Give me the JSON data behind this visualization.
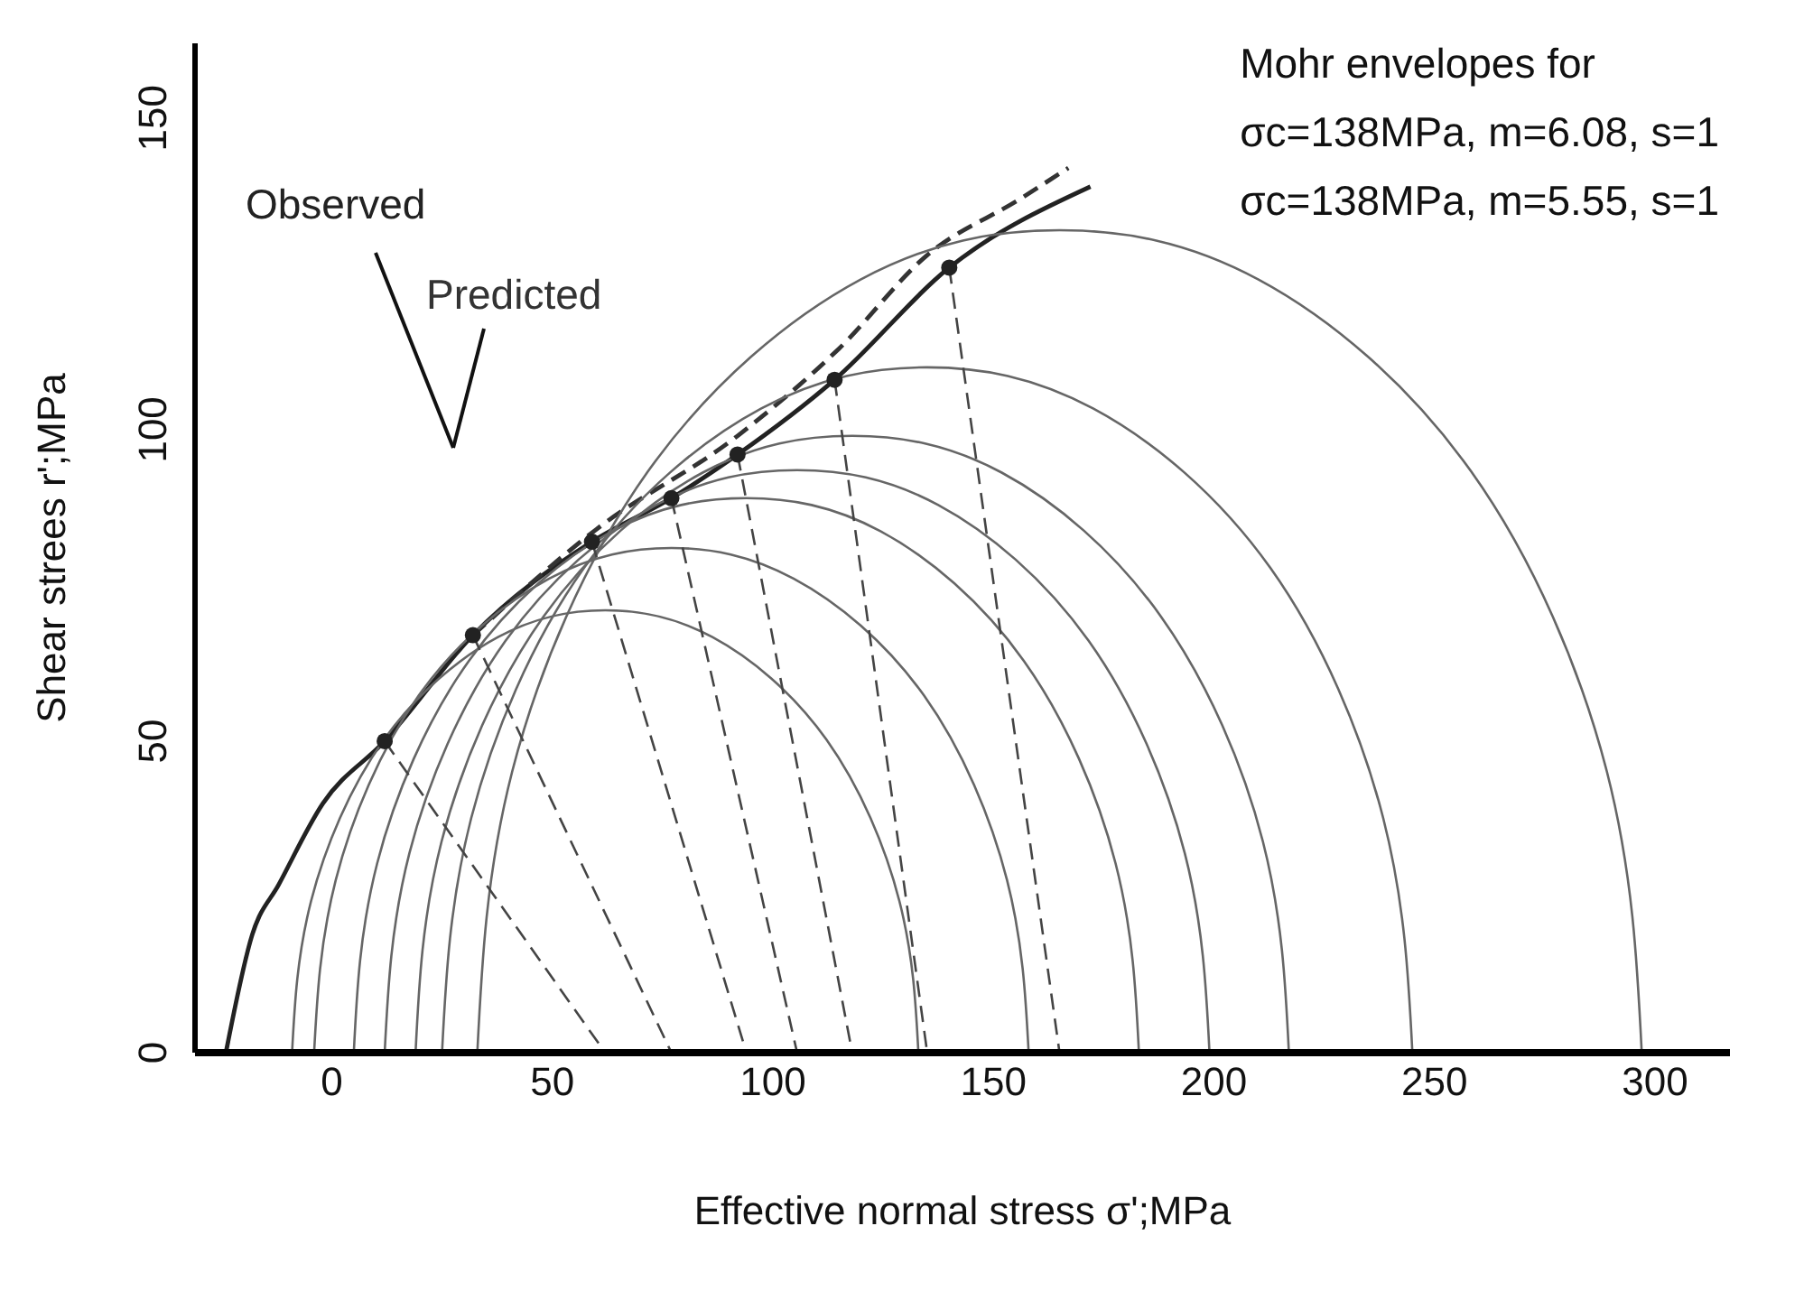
{
  "chart_data": {
    "type": "line",
    "xlabel": "Effective normal stress σ';MPa",
    "ylabel": "Shear strees r';MPa",
    "xlim": [
      -31,
      317
    ],
    "xticks": [
      0,
      50,
      100,
      150,
      200,
      250,
      300
    ],
    "ylim": [
      0,
      162
    ],
    "yticks": [
      0,
      50,
      100,
      150
    ],
    "grid": false,
    "annotations": [
      "Mohr envelopes for",
      "σc=138MPa, m=6.08, s=1",
      "σc=138MPa, m=5.55, s=1"
    ],
    "series": [
      {
        "name": "Observed",
        "color": "#222222",
        "line_style": "solid",
        "x": [
          -24,
          -18,
          -12,
          -2,
          12,
          32,
          59,
          77,
          92,
          114,
          140,
          172
        ],
        "values": [
          0,
          19,
          27,
          40,
          50,
          67,
          82,
          89,
          96,
          108,
          126,
          139
        ]
      },
      {
        "name": "Predicted",
        "color": "#333333",
        "line_style": "dashed",
        "x": [
          32,
          60,
          92,
          115,
          135,
          156,
          167
        ],
        "values": [
          67,
          84,
          99,
          113,
          128,
          137,
          142
        ]
      },
      {
        "color": "#666666",
        "line_style": "solid",
        "x": [
          -9,
          -4.7,
          11.8,
          37.7,
          62,
          86.3,
          112.2,
          128.7,
          133
        ],
        "values": [
          0,
          24.3,
          50.2,
          66.7,
          71,
          66.7,
          50.2,
          24.3,
          0
        ]
      },
      {
        "color": "#666666",
        "line_style": "solid",
        "x": [
          -4,
          0.9,
          19.7,
          49.3,
          77,
          104.7,
          134.3,
          153.1,
          158
        ],
        "values": [
          0,
          27.7,
          57.3,
          76.1,
          81,
          76.1,
          57.3,
          27.7,
          0
        ]
      },
      {
        "color": "#666666",
        "line_style": "solid",
        "x": [
          5,
          10.3,
          31.1,
          63.6,
          94,
          124.4,
          156.9,
          177.7,
          183
        ],
        "values": [
          0,
          30.4,
          62.9,
          83.7,
          89,
          83.7,
          62.9,
          30.4,
          0
        ]
      },
      {
        "color": "#666666",
        "line_style": "solid",
        "x": [
          12,
          17.6,
          39.4,
          73.5,
          105.5,
          137.5,
          171.6,
          193.4,
          199
        ],
        "values": [
          0,
          32,
          66.1,
          87.9,
          93.5,
          87.9,
          66.1,
          32,
          0
        ]
      },
      {
        "color": "#666666",
        "line_style": "solid",
        "x": [
          19,
          24.9,
          48,
          84.1,
          118,
          151.9,
          188,
          211.1,
          217
        ],
        "values": [
          0,
          33.9,
          70,
          93.1,
          99,
          93.1,
          70,
          33.9,
          0
        ]
      },
      {
        "color": "#666666",
        "line_style": "solid",
        "x": [
          25,
          31.6,
          57.2,
          97.4,
          135,
          172.6,
          212.8,
          238.4,
          245
        ],
        "values": [
          0,
          37.6,
          77.8,
          103.4,
          110,
          103.4,
          77.8,
          37.6,
          0
        ]
      },
      {
        "color": "#666666",
        "line_style": "solid",
        "x": [
          33,
          40.9,
          71.7,
          119.9,
          165,
          210.1,
          258.3,
          289.1,
          297
        ],
        "values": [
          0,
          45.1,
          93.3,
          124.1,
          132,
          124.1,
          93.3,
          45.1,
          0
        ]
      },
      {
        "color": "#444444",
        "line_style": "dashed",
        "x": [
          12,
          62
        ],
        "values": [
          50,
          0
        ]
      },
      {
        "color": "#444444",
        "line_style": "dashed",
        "x": [
          32,
          77
        ],
        "values": [
          67,
          0
        ]
      },
      {
        "color": "#444444",
        "line_style": "dashed",
        "x": [
          59,
          94
        ],
        "values": [
          82,
          0
        ]
      },
      {
        "color": "#444444",
        "line_style": "dashed",
        "x": [
          77,
          105.5
        ],
        "values": [
          89,
          0
        ]
      },
      {
        "color": "#444444",
        "line_style": "dashed",
        "x": [
          92,
          118
        ],
        "values": [
          96,
          0
        ]
      },
      {
        "color": "#444444",
        "line_style": "dashed",
        "x": [
          114,
          135
        ],
        "values": [
          108,
          0
        ]
      },
      {
        "color": "#444444",
        "line_style": "dashed",
        "x": [
          140,
          165
        ],
        "values": [
          126,
          0
        ]
      },
      {
        "type": "scatter",
        "marker": "circle",
        "color": "#222222",
        "x": [
          12,
          32,
          59,
          77,
          92,
          114,
          140
        ],
        "values": [
          50,
          67,
          82,
          89,
          96,
          108,
          126
        ]
      }
    ]
  }
}
